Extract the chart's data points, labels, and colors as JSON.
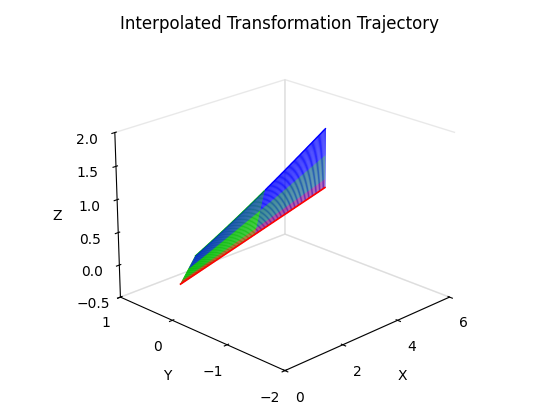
{
  "title": "Interpolated Transformation Trajectory",
  "xlabel": "X",
  "ylabel": "Y",
  "zlabel": "Z",
  "xlim": [
    0,
    6
  ],
  "ylim": [
    -2,
    1
  ],
  "zlim": [
    -0.5,
    2
  ],
  "n_lines": 100,
  "blue_color": "#0000FF",
  "green_color": "#00BB00",
  "red_color": "#FF0000",
  "linewidth": 0.6,
  "elev": 22,
  "azim": -135
}
